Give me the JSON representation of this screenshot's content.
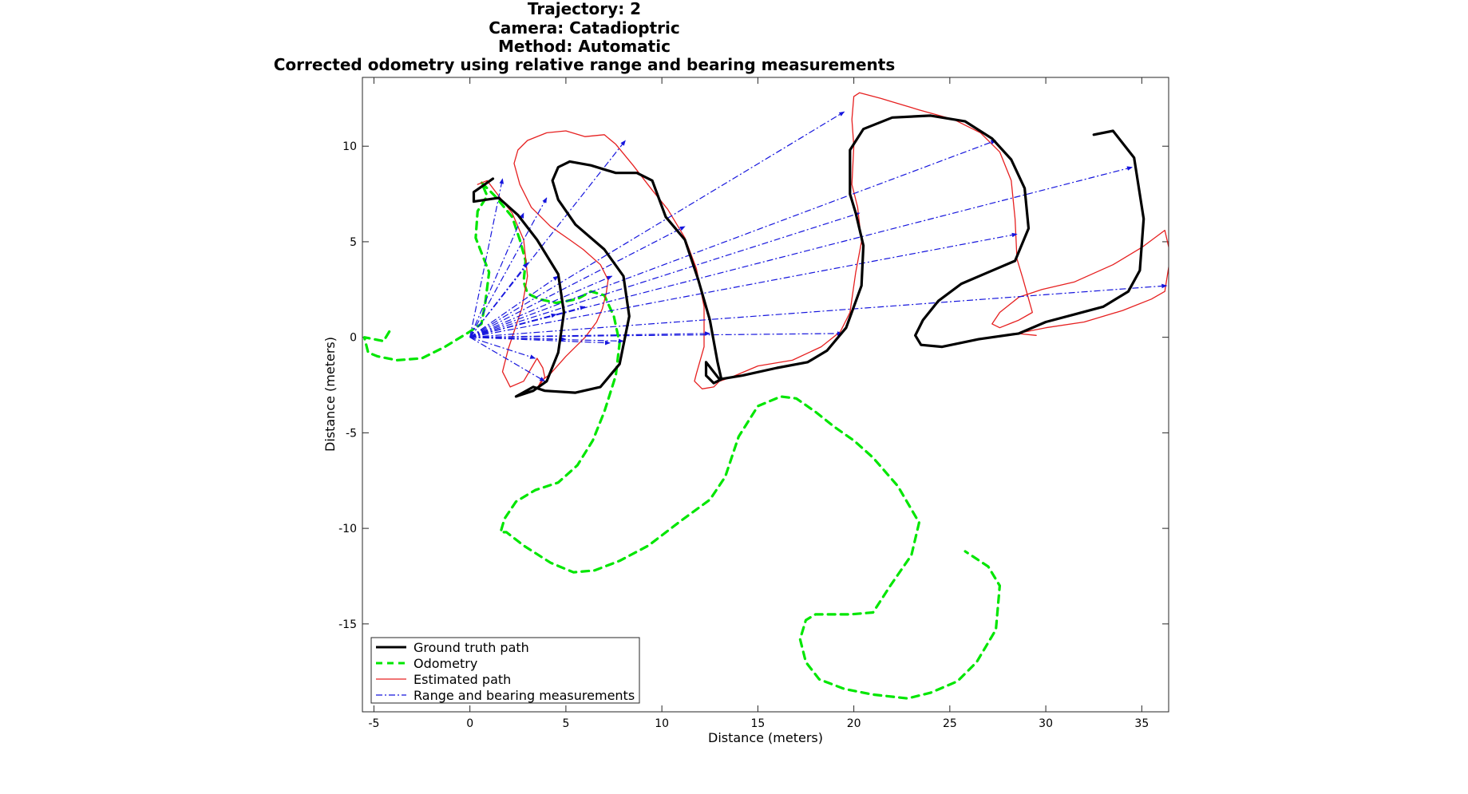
{
  "chart_data": {
    "type": "line",
    "title_lines": [
      "Trajectory: 2",
      "Camera: Catadioptric",
      "Method: Automatic",
      "Corrected odometry using relative range and bearing measurements"
    ],
    "xlabel": "Distance (meters)",
    "ylabel": "Distance (meters)",
    "xlim": [
      -5.6,
      36.4
    ],
    "ylim": [
      -19.6,
      13.6
    ],
    "xticks": [
      -5,
      0,
      5,
      10,
      15,
      20,
      25,
      30,
      35
    ],
    "xtick_labels": [
      "-5",
      "0",
      "5",
      "10",
      "15",
      "20",
      "25",
      "30",
      "35"
    ],
    "yticks": [
      -15,
      -10,
      -5,
      0,
      5,
      10
    ],
    "ytick_labels": [
      "-15",
      "-10",
      "-5",
      "0",
      "5",
      "10"
    ],
    "legend_position": "bottom-left",
    "series": [
      {
        "name": "Ground truth path",
        "legend_label": "Ground truth path",
        "style": "solid-thick",
        "color": "#000000",
        "x": [
          1.2,
          0.2,
          0.2,
          1.5,
          2.5,
          3.5,
          4.6,
          4.9,
          4.6,
          4.0,
          3.3,
          2.4,
          3.3,
          3.9,
          5.5,
          6.8,
          7.8,
          8.3,
          8.0,
          7.0,
          5.5,
          4.6,
          4.3,
          4.6,
          5.2,
          6.3,
          7.6,
          8.7,
          9.5,
          10.2,
          11.2,
          11.9,
          12.5,
          12.9,
          13.1,
          12.7,
          12.3,
          12.3,
          13.0,
          14.2,
          16.0,
          17.6,
          18.6,
          19.6,
          20.4,
          20.5,
          20.1,
          19.8,
          19.8,
          20.5,
          22.0,
          24.0,
          25.8,
          27.2,
          28.2,
          28.9,
          29.1,
          28.4,
          27.0,
          25.6,
          24.4,
          23.6,
          23.2,
          23.5,
          24.6,
          26.5,
          28.6,
          30.0,
          31.5,
          33.0,
          34.3,
          34.9,
          35.1,
          34.6,
          33.5,
          32.5
        ],
        "y": [
          8.3,
          7.6,
          7.1,
          7.3,
          6.4,
          5.1,
          3.3,
          1.3,
          -0.8,
          -2.3,
          -2.8,
          -3.1,
          -2.6,
          -2.8,
          -2.9,
          -2.6,
          -1.4,
          1.1,
          3.2,
          4.6,
          5.9,
          7.2,
          8.2,
          8.9,
          9.2,
          9.0,
          8.6,
          8.6,
          8.2,
          6.3,
          5.1,
          3.0,
          0.9,
          -1.3,
          -2.2,
          -2.4,
          -2.0,
          -1.3,
          -2.2,
          -2.0,
          -1.6,
          -1.3,
          -0.7,
          0.5,
          2.7,
          4.8,
          6.5,
          7.5,
          9.8,
          10.9,
          11.5,
          11.6,
          11.3,
          10.4,
          9.3,
          7.8,
          5.7,
          4.0,
          3.4,
          2.8,
          1.9,
          0.9,
          0.1,
          -0.4,
          -0.5,
          -0.1,
          0.2,
          0.8,
          1.2,
          1.6,
          2.4,
          3.5,
          6.2,
          9.4,
          10.8,
          10.6
        ]
      },
      {
        "name": "Odometry",
        "legend_label": "Odometry",
        "style": "dashed-thick",
        "color": "#00e600",
        "x": [
          -4.2,
          -4.5,
          -5.0,
          -5.5,
          -5.3,
          -4.8,
          -3.8,
          -2.5,
          -1.3,
          0.0,
          0.6,
          0.8,
          1.0,
          0.3,
          0.4,
          0.9,
          0.6,
          1.3,
          2.2,
          2.6,
          2.9,
          2.8,
          3.0,
          3.6,
          4.5,
          5.6,
          6.3,
          7.0,
          7.5,
          7.8,
          7.6,
          7.0,
          6.4,
          5.6,
          4.6,
          3.4,
          2.4,
          1.8,
          1.6,
          1.9,
          2.8,
          4.2,
          5.4,
          6.5,
          7.8,
          9.3,
          11.0,
          12.5,
          13.3,
          14.0,
          15.0,
          16.2,
          17.0,
          18.0,
          19.0,
          20.0,
          21.0,
          22.3,
          23.4,
          23.0,
          21.9,
          21.0,
          19.8,
          18.0,
          17.5,
          17.2,
          17.5,
          18.2,
          19.5,
          21.0,
          22.8,
          24.0,
          25.4,
          26.4,
          27.4,
          27.6,
          27.0,
          25.8
        ],
        "y": [
          0.3,
          -0.2,
          -0.1,
          0.0,
          -0.8,
          -1.0,
          -1.2,
          -1.1,
          -0.5,
          0.3,
          0.7,
          1.8,
          3.4,
          5.2,
          6.6,
          7.4,
          8.1,
          7.4,
          6.3,
          5.1,
          4.0,
          2.9,
          2.3,
          2.0,
          1.8,
          2.0,
          2.4,
          2.2,
          1.1,
          -0.3,
          -2.0,
          -3.9,
          -5.4,
          -6.7,
          -7.6,
          -8.0,
          -8.6,
          -9.5,
          -10.2,
          -10.2,
          -10.9,
          -11.8,
          -12.3,
          -12.2,
          -11.7,
          -10.9,
          -9.6,
          -8.5,
          -7.3,
          -5.2,
          -3.6,
          -3.1,
          -3.2,
          -3.9,
          -4.7,
          -5.4,
          -6.3,
          -7.8,
          -9.7,
          -11.4,
          -13.0,
          -14.4,
          -14.5,
          -14.5,
          -14.8,
          -15.8,
          -17.0,
          -17.9,
          -18.4,
          -18.7,
          -18.9,
          -18.6,
          -18.0,
          -17.0,
          -15.3,
          -13.0,
          -12.0,
          -11.2
        ]
      },
      {
        "name": "Estimated path",
        "legend_label": "Estimated path",
        "style": "solid-thin",
        "color": "#e62020",
        "x": [
          0.4,
          0.9,
          1.5,
          2.2,
          2.8,
          3.0,
          2.7,
          2.0,
          1.7,
          2.1,
          2.8,
          3.5,
          3.8,
          3.9,
          3.5,
          3.7,
          4.2,
          5.0,
          6.0,
          6.6,
          6.9,
          7.1,
          7.2,
          6.8,
          5.9,
          5.2,
          4.2,
          3.2,
          2.6,
          2.3,
          2.5,
          3.0,
          4.0,
          5.0,
          6.0,
          7.0,
          7.6,
          8.5,
          9.5,
          10.3,
          11.2,
          11.8,
          12.2,
          12.2,
          11.8,
          11.7,
          12.1,
          12.7,
          13.0,
          13.6,
          15.0,
          16.8,
          18.3,
          19.3,
          19.8,
          20.1,
          20.4,
          20.2,
          19.9,
          20.0,
          19.9,
          20.0,
          20.3,
          21.4,
          23.4,
          25.2,
          26.6,
          27.6,
          28.2,
          28.4,
          28.5,
          28.8,
          29.3,
          28.6,
          27.6,
          27.2,
          27.6,
          28.6,
          29.8,
          31.5,
          33.5,
          35.0,
          36.2,
          36.5,
          36.2,
          35.5,
          34.0,
          32.0,
          30.0,
          28.5,
          29.5
        ],
        "y": [
          8.0,
          8.2,
          7.4,
          6.5,
          5.1,
          3.2,
          1.5,
          -0.6,
          -1.8,
          -2.6,
          -2.3,
          -1.1,
          -1.6,
          -2.1,
          -2.7,
          -2.3,
          -1.9,
          -1.0,
          0.0,
          0.8,
          1.5,
          2.3,
          3.0,
          3.8,
          4.6,
          5.1,
          5.8,
          6.8,
          8.0,
          9.1,
          9.8,
          10.3,
          10.7,
          10.8,
          10.5,
          10.6,
          10.1,
          9.0,
          7.7,
          6.7,
          5.2,
          3.6,
          1.6,
          -0.5,
          -1.9,
          -2.3,
          -2.7,
          -2.6,
          -2.3,
          -2.1,
          -1.5,
          -1.2,
          -0.5,
          0.3,
          1.3,
          3.4,
          5.0,
          6.8,
          8.0,
          10.0,
          11.4,
          12.6,
          12.8,
          12.5,
          11.9,
          11.4,
          10.7,
          9.7,
          8.2,
          6.2,
          4.1,
          3.1,
          1.3,
          0.9,
          0.5,
          0.7,
          1.3,
          2.1,
          2.5,
          2.9,
          3.8,
          4.7,
          5.6,
          4.3,
          2.4,
          2.0,
          1.4,
          0.8,
          0.5,
          0.2,
          0.1
        ]
      },
      {
        "name": "Range and bearing measurements",
        "legend_label": "Range and bearing measurements",
        "style": "dashdot",
        "color": "#1515dd",
        "origin": [
          0.0,
          0.0
        ],
        "endpoints": [
          [
            1.7,
            8.3
          ],
          [
            4.0,
            7.3
          ],
          [
            8.1,
            10.3
          ],
          [
            2.8,
            6.5
          ],
          [
            5.0,
            -0.1
          ],
          [
            3.9,
            -2.3
          ],
          [
            4.5,
            1.2
          ],
          [
            7.3,
            -0.3
          ],
          [
            3.4,
            -1.1
          ],
          [
            7.4,
            3.2
          ],
          [
            8.0,
            -0.2
          ],
          [
            12.5,
            0.2
          ],
          [
            19.4,
            0.2
          ],
          [
            19.5,
            11.8
          ],
          [
            11.2,
            5.8
          ],
          [
            20.3,
            6.5
          ],
          [
            27.4,
            10.3
          ],
          [
            34.5,
            8.9
          ],
          [
            28.5,
            5.4
          ],
          [
            36.3,
            2.7
          ],
          [
            4.6,
            3.2
          ],
          [
            6.0,
            1.6
          ],
          [
            3.0,
            3.9
          ]
        ]
      }
    ]
  }
}
